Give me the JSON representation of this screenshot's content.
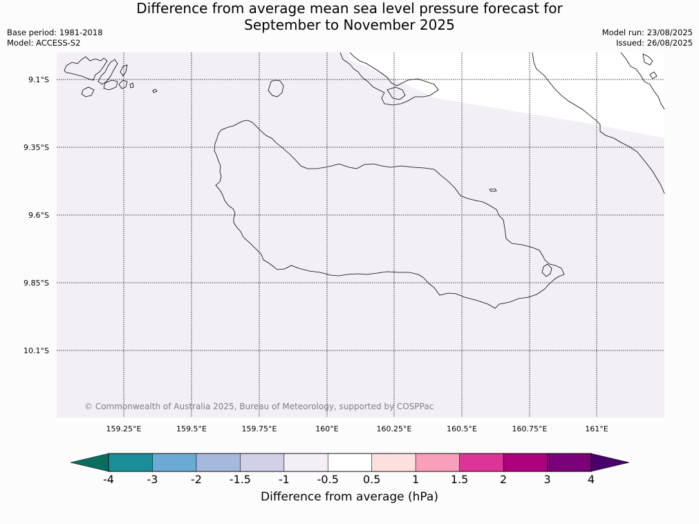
{
  "title_line1": "Difference from average mean sea level pressure forecast for",
  "title_line2": "September to November 2025",
  "meta_left": [
    "Base period: 1981-2018",
    "Model: ACCESS-S2"
  ],
  "meta_right": [
    "Model run: 23/08/2025",
    "Issued: 26/08/2025"
  ],
  "lon_ticks": [
    "159.25°E",
    "159.5°E",
    "159.75°E",
    "160°E",
    "160.25°E",
    "160.5°E",
    "160.75°E",
    "161°E"
  ],
  "lat_ticks": [
    "9.1°S",
    "9.35°S",
    "9.6°S",
    "9.85°S",
    "10.1°S"
  ],
  "copyright": "© Commonwealth of Australia 2025, Bureau of Meteorology, supported by COSPPac",
  "colorbar": {
    "label": "Difference from average (hPa)",
    "ticks": [
      "-4",
      "-3",
      "-2",
      "-1.5",
      "-1",
      "-0.5",
      "0.5",
      "1",
      "1.5",
      "2",
      "3",
      "4"
    ],
    "colors": [
      "#1a8f99",
      "#6aaad3",
      "#a6b9dc",
      "#d0d1e6",
      "#f4eef6",
      "#ffffff",
      "#fde0dd",
      "#f99fba",
      "#dd3497",
      "#ae017e",
      "#7a0177"
    ],
    "under_color": "#0b6d5e",
    "over_color": "#49006a"
  },
  "map_fill_color": "#f4eef6"
}
